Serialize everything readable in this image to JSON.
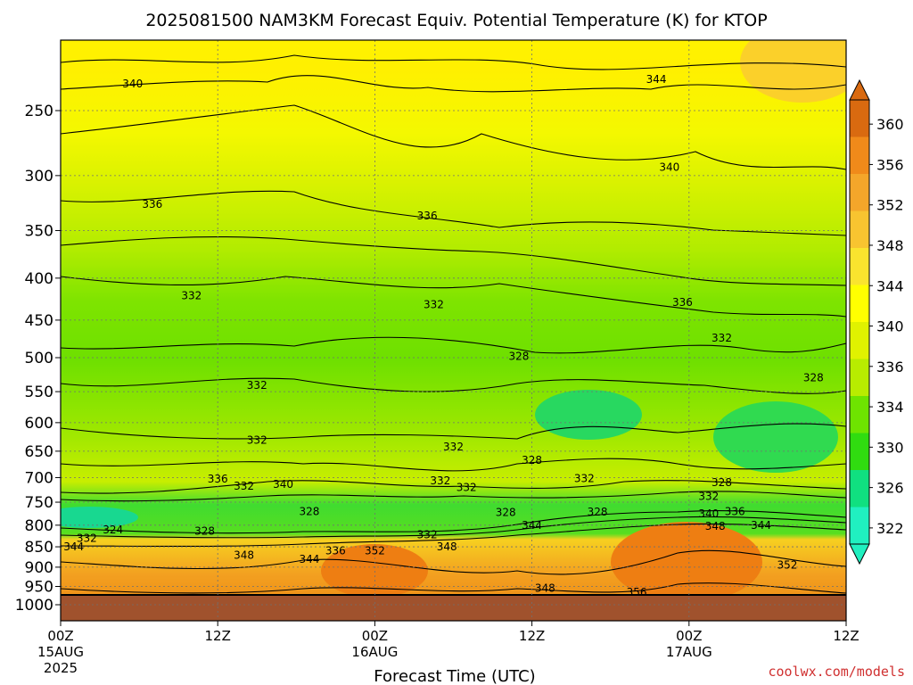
{
  "chart_data": {
    "type": "heatmap",
    "title": "2025081500 NAM3KM Forecast Equiv. Potential Temperature (K) for KTOP",
    "xlabel": "Forecast Time (UTC)",
    "x_ticks": [
      {
        "hours": 0,
        "line1": "00Z",
        "line2": "15AUG",
        "line3": "2025"
      },
      {
        "hours": 12,
        "line1": "12Z",
        "line2": "",
        "line3": ""
      },
      {
        "hours": 24,
        "line1": "00Z",
        "line2": "16AUG",
        "line3": ""
      },
      {
        "hours": 36,
        "line1": "12Z",
        "line2": "",
        "line3": ""
      },
      {
        "hours": 48,
        "line1": "00Z",
        "line2": "17AUG",
        "line3": ""
      },
      {
        "hours": 60,
        "line1": "12Z",
        "line2": "",
        "line3": ""
      }
    ],
    "xlim_hours": [
      0,
      60
    ],
    "y_ticks": [
      "250",
      "300",
      "350",
      "400",
      "450",
      "500",
      "550",
      "600",
      "650",
      "700",
      "750",
      "800",
      "850",
      "900",
      "950",
      "1000"
    ],
    "ylim_hPa": [
      200,
      1050
    ],
    "colorbar": {
      "labels": [
        "360",
        "356",
        "352",
        "348",
        "344",
        "340",
        "336",
        "334",
        "330",
        "326",
        "322"
      ],
      "colors": [
        "#d96a10",
        "#f08a1a",
        "#f4a62a",
        "#f8c430",
        "#fae42e",
        "#ffff00",
        "#e0f200",
        "#b8ec00",
        "#6ee400",
        "#30dc10",
        "#10e080",
        "#20f0c0"
      ]
    },
    "contour_labels": [
      {
        "text": "340",
        "hours": 5.5,
        "hPa": 232
      },
      {
        "text": "344",
        "hours": 45.5,
        "hPa": 229
      },
      {
        "text": "340",
        "hours": 46.5,
        "hPa": 293
      },
      {
        "text": "336",
        "hours": 7,
        "hPa": 325
      },
      {
        "text": "336",
        "hours": 28,
        "hPa": 336
      },
      {
        "text": "332",
        "hours": 10,
        "hPa": 420
      },
      {
        "text": "332",
        "hours": 28.5,
        "hPa": 431
      },
      {
        "text": "336",
        "hours": 47.5,
        "hPa": 428
      },
      {
        "text": "332",
        "hours": 50.5,
        "hPa": 473
      },
      {
        "text": "328",
        "hours": 35,
        "hPa": 498
      },
      {
        "text": "332",
        "hours": 15,
        "hPa": 540
      },
      {
        "text": "328",
        "hours": 57.5,
        "hPa": 529
      },
      {
        "text": "332",
        "hours": 15,
        "hPa": 630
      },
      {
        "text": "332",
        "hours": 30,
        "hPa": 642
      },
      {
        "text": "328",
        "hours": 36,
        "hPa": 667
      },
      {
        "text": "336",
        "hours": 12,
        "hPa": 703
      },
      {
        "text": "332",
        "hours": 14,
        "hPa": 717
      },
      {
        "text": "340",
        "hours": 17,
        "hPa": 713
      },
      {
        "text": "332",
        "hours": 29,
        "hPa": 706
      },
      {
        "text": "332",
        "hours": 31,
        "hPa": 720
      },
      {
        "text": "332",
        "hours": 40,
        "hPa": 702
      },
      {
        "text": "328",
        "hours": 50.5,
        "hPa": 710
      },
      {
        "text": "332",
        "hours": 49.5,
        "hPa": 738
      },
      {
        "text": "328",
        "hours": 19,
        "hPa": 770
      },
      {
        "text": "328",
        "hours": 34,
        "hPa": 772
      },
      {
        "text": "328",
        "hours": 41,
        "hPa": 771
      },
      {
        "text": "340",
        "hours": 49.5,
        "hPa": 775
      },
      {
        "text": "336",
        "hours": 51.5,
        "hPa": 770
      },
      {
        "text": "324",
        "hours": 4,
        "hPa": 810
      },
      {
        "text": "332",
        "hours": 2,
        "hPa": 830
      },
      {
        "text": "328",
        "hours": 11,
        "hPa": 813
      },
      {
        "text": "344",
        "hours": 36,
        "hPa": 800
      },
      {
        "text": "348",
        "hours": 50,
        "hPa": 802
      },
      {
        "text": "344",
        "hours": 53.5,
        "hPa": 800
      },
      {
        "text": "344",
        "hours": 1,
        "hPa": 850
      },
      {
        "text": "332",
        "hours": 28,
        "hPa": 822
      },
      {
        "text": "348",
        "hours": 29.5,
        "hPa": 850
      },
      {
        "text": "336",
        "hours": 21,
        "hPa": 860
      },
      {
        "text": "352",
        "hours": 24,
        "hPa": 860
      },
      {
        "text": "348",
        "hours": 14,
        "hPa": 870
      },
      {
        "text": "344",
        "hours": 19,
        "hPa": 880
      },
      {
        "text": "352",
        "hours": 55.5,
        "hPa": 895
      },
      {
        "text": "348",
        "hours": 37,
        "hPa": 955
      },
      {
        "text": "356",
        "hours": 44,
        "hPa": 965
      }
    ],
    "surface_below_hPa": 975
  },
  "credit": "coolwx.com/models"
}
